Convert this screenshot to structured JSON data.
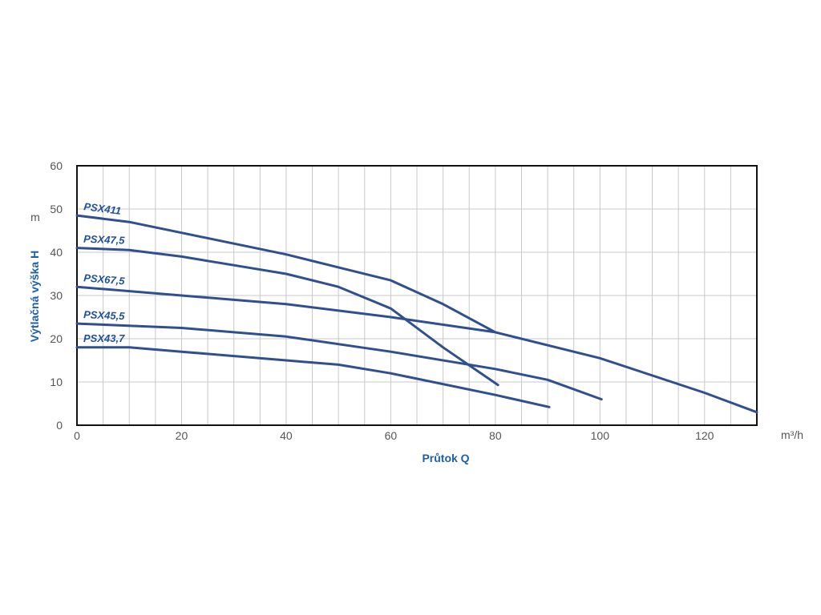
{
  "chart_data": {
    "type": "line",
    "x_label": "Průtok Q",
    "y_label": "Výtlačná výška H",
    "x_unit": "m³/h",
    "y_unit": "m",
    "xlim": [
      0,
      130
    ],
    "ylim": [
      0,
      60
    ],
    "xticks": [
      0,
      20,
      40,
      60,
      80,
      100,
      120
    ],
    "yticks": [
      0,
      10,
      20,
      30,
      40,
      50,
      60
    ],
    "xgrid": [
      0,
      5,
      10,
      15,
      20,
      25,
      30,
      35,
      40,
      45,
      50,
      55,
      60,
      65,
      70,
      75,
      80,
      85,
      90,
      95,
      100,
      105,
      110,
      115,
      120,
      125,
      130
    ],
    "grid": true,
    "series": [
      {
        "name": "PSX411",
        "color": "#2f4f8f",
        "x": [
          0,
          10,
          20,
          30,
          40,
          50,
          60,
          70,
          80
        ],
        "values": [
          48.5,
          47,
          44.5,
          42,
          39.5,
          36.5,
          33.5,
          28,
          21.5
        ]
      },
      {
        "name": "PSX47,5",
        "color": "#2f4f8f",
        "x": [
          0,
          10,
          20,
          30,
          40,
          50,
          60,
          70,
          80.5
        ],
        "values": [
          41,
          40.5,
          39,
          37,
          35,
          32,
          27,
          18,
          9.3
        ]
      },
      {
        "name": "PSX67,5",
        "color": "#2f4f8f",
        "x": [
          0,
          20,
          40,
          60,
          80,
          100,
          120,
          130
        ],
        "values": [
          32,
          30,
          28,
          25,
          21.5,
          15.5,
          7.5,
          3
        ]
      },
      {
        "name": "PSX45,5",
        "color": "#2f4f8f",
        "x": [
          0,
          20,
          40,
          60,
          80,
          90,
          100.3
        ],
        "values": [
          23.5,
          22.5,
          20.5,
          17,
          13,
          10.5,
          6
        ]
      },
      {
        "name": "PSX43,7",
        "color": "#2f4f8f",
        "x": [
          0,
          10,
          20,
          40,
          50,
          60,
          80,
          90.3
        ],
        "values": [
          18,
          18,
          17,
          15,
          14,
          12,
          7,
          4.2
        ]
      }
    ]
  }
}
